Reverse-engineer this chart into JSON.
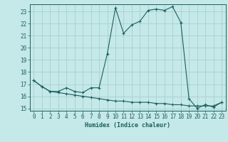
{
  "xlabel": "Humidex (Indice chaleur)",
  "xlim": [
    -0.5,
    23.5
  ],
  "ylim": [
    14.8,
    23.6
  ],
  "yticks": [
    15,
    16,
    17,
    18,
    19,
    20,
    21,
    22,
    23
  ],
  "xticks": [
    0,
    1,
    2,
    3,
    4,
    5,
    6,
    7,
    8,
    9,
    10,
    11,
    12,
    13,
    14,
    15,
    16,
    17,
    18,
    19,
    20,
    21,
    22,
    23
  ],
  "bg_color": "#c5e8e8",
  "line_color": "#1a6060",
  "grid_color": "#a8d0d0",
  "line1_x": [
    0,
    1,
    2,
    3,
    4,
    5,
    6,
    7,
    8,
    9,
    10,
    11,
    12,
    13,
    14,
    15,
    16,
    17,
    18,
    19,
    20,
    21,
    22,
    23
  ],
  "line1_y": [
    17.3,
    16.8,
    16.4,
    16.4,
    16.7,
    16.4,
    16.3,
    16.7,
    16.7,
    19.5,
    23.3,
    21.2,
    21.9,
    22.2,
    23.1,
    23.2,
    23.1,
    23.4,
    22.1,
    15.8,
    15.0,
    15.3,
    15.1,
    15.5
  ],
  "line2_x": [
    0,
    1,
    2,
    3,
    4,
    5,
    6,
    7,
    8,
    9,
    10,
    11,
    12,
    13,
    14,
    15,
    16,
    17,
    18,
    19,
    20,
    21,
    22,
    23
  ],
  "line2_y": [
    17.3,
    16.8,
    16.4,
    16.3,
    16.2,
    16.1,
    16.0,
    15.9,
    15.8,
    15.7,
    15.6,
    15.6,
    15.5,
    15.5,
    15.5,
    15.4,
    15.4,
    15.3,
    15.3,
    15.2,
    15.2,
    15.2,
    15.2,
    15.5
  ]
}
